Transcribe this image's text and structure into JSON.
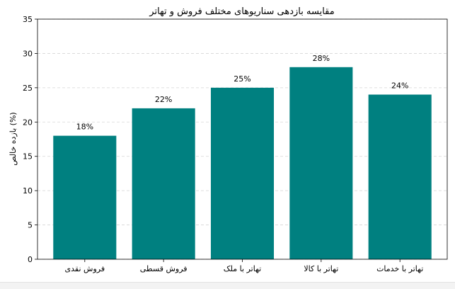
{
  "chart_data": {
    "type": "bar",
    "title": "مقایسه بازدهی سناریوهای مختلف فروش و تهاتر",
    "xlabel": "",
    "ylabel": "بازده خالص (%)",
    "categories": [
      "فروش نقدی",
      "فروش قسطی",
      "تهاتر با ملک",
      "تهاتر با کالا",
      "تهاتر با خدمات"
    ],
    "values": [
      18,
      22,
      25,
      28,
      24
    ],
    "data_labels": [
      "18%",
      "22%",
      "25%",
      "28%",
      "24%"
    ],
    "ylim": [
      0,
      35
    ],
    "yticks": [
      0,
      5,
      10,
      15,
      20,
      25,
      30,
      35
    ],
    "grid": "y-dashed",
    "bar_color": "#008080"
  }
}
